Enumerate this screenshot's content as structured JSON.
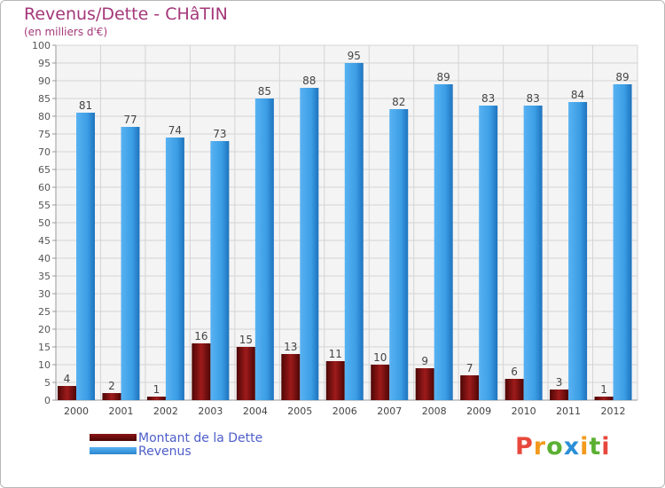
{
  "chart_data": {
    "type": "bar",
    "title": "Revenus/Dette - CHâTIN",
    "subtitle": "(en milliers d'€)",
    "xlabel": "",
    "ylabel": "",
    "ylim": [
      0,
      100
    ],
    "ytick_step": 5,
    "categories": [
      "2000",
      "2001",
      "2002",
      "2003",
      "2004",
      "2005",
      "2006",
      "2007",
      "2008",
      "2009",
      "2010",
      "2011",
      "2012"
    ],
    "series": [
      {
        "name": "Montant de la Dette",
        "color": "#8b1414",
        "values": [
          4,
          2,
          1,
          16,
          15,
          13,
          11,
          10,
          9,
          7,
          6,
          3,
          1
        ]
      },
      {
        "name": "Revenus",
        "color": "#3c9ee5",
        "values": [
          81,
          77,
          74,
          73,
          85,
          88,
          95,
          82,
          89,
          83,
          83,
          84,
          89
        ]
      }
    ],
    "legend_position": "bottom-left",
    "grid": true
  },
  "brand": {
    "name": "Proxiti",
    "letters": [
      {
        "char": "P",
        "color": "#e8483c"
      },
      {
        "char": "r",
        "color": "#f39a1c"
      },
      {
        "char": "o",
        "color": "#5bb031"
      },
      {
        "char": "x",
        "color": "#2b8fd6"
      },
      {
        "char": "i",
        "color": "#f39a1c"
      },
      {
        "char": "t",
        "color": "#5bb031"
      },
      {
        "char": "i",
        "color": "#e8483c"
      }
    ]
  }
}
